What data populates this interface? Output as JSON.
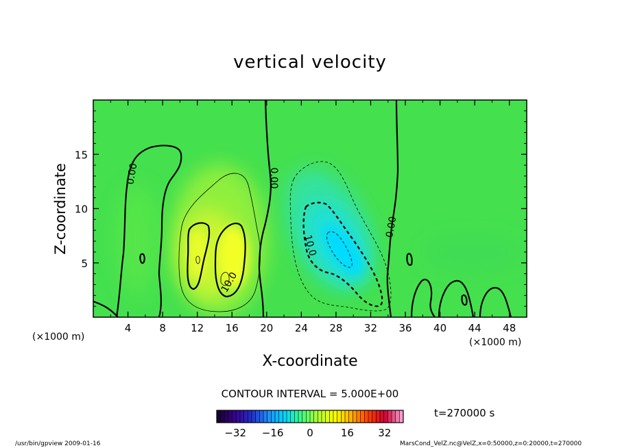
{
  "chart_data": {
    "type": "heatmap",
    "title": "vertical velocity",
    "xlabel": "X-coordinate",
    "ylabel": "Z-coordinate",
    "x_unit_left": "(×1000 m)",
    "x_unit_right": "(×1000 m)",
    "xlim": [
      0,
      50
    ],
    "ylim": [
      0,
      20
    ],
    "x_ticks": [
      4,
      8,
      12,
      16,
      20,
      24,
      28,
      32,
      36,
      40,
      44,
      48
    ],
    "y_ticks": [
      5,
      10,
      15
    ],
    "contour_labels": [
      {
        "text": "0.00",
        "x": 4.5,
        "y": 13.2
      },
      {
        "text": "0.00",
        "x": 20.8,
        "y": 12.8
      },
      {
        "text": "0.00",
        "x": 34.4,
        "y": 8.3
      },
      {
        "text": "10.0",
        "x": 15.7,
        "y": 3.2
      },
      {
        "text": "10.0",
        "x": 25.0,
        "y": 6.6
      }
    ],
    "contour_interval": "CONTOUR INTERVAL = 5.000E+00",
    "colorbar": {
      "range": [
        -40,
        40
      ],
      "ticks": [
        -32,
        -16,
        0,
        16,
        32
      ],
      "colors": [
        "#1a0033",
        "#3a0090",
        "#2030d0",
        "#1e90ff",
        "#00d8ff",
        "#40ff80",
        "#b0ff30",
        "#ffff00",
        "#ffb000",
        "#ff4000",
        "#d00030",
        "#ff9ad0"
      ]
    },
    "annotation": "t=270000 s",
    "colors": {
      "background_field": "#44e04e",
      "updraft": "#ffff30",
      "downdraft": "#00e8ff"
    }
  },
  "footer": {
    "left": "/usr/bin/gpview   2009-01-16",
    "right": "MarsCond_VelZ.nc@VelZ,x=0:50000,z=0:20000,t=270000"
  }
}
